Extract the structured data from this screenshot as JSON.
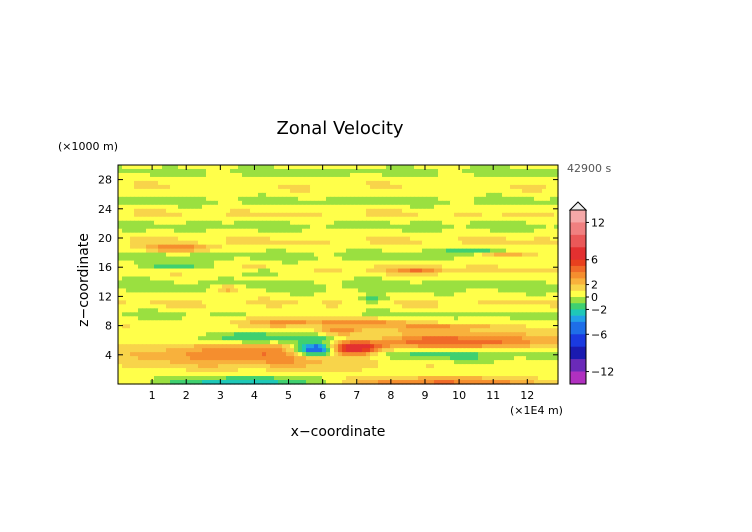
{
  "chart_data": {
    "type": "heatmap",
    "title": "Zonal Velocity",
    "xlabel": "x−coordinate",
    "ylabel": "z−coordinate",
    "x_unit": "(×1E4 m)",
    "y_unit": "(×1000 m)",
    "time_label": "42900 s",
    "xlim": [
      0,
      12.9
    ],
    "ylim": [
      0,
      30
    ],
    "x_ticks": [
      "1",
      "2",
      "3",
      "4",
      "5",
      "6",
      "7",
      "8",
      "9",
      "10",
      "11",
      "12"
    ],
    "y_ticks": [
      "4",
      "8",
      "12",
      "16",
      "20",
      "24",
      "28"
    ],
    "colorbar": {
      "tick_labels": [
        "12",
        "6",
        "2",
        "0",
        "−2",
        "−6",
        "−12"
      ],
      "levels": [
        {
          "value": 14,
          "color": "#f5a8a8"
        },
        {
          "value": 12,
          "color": "#f08080"
        },
        {
          "value": 10,
          "color": "#ea5858"
        },
        {
          "value": 8,
          "color": "#e33030"
        },
        {
          "value": 6,
          "color": "#e8401e"
        },
        {
          "value": 5,
          "color": "#f06a28"
        },
        {
          "value": 4,
          "color": "#f58e2e"
        },
        {
          "value": 3,
          "color": "#f8b13c"
        },
        {
          "value": 2,
          "color": "#f8d44a"
        },
        {
          "value": 1,
          "color": "#ffff4a"
        },
        {
          "value": 0,
          "color": "#9ae040"
        },
        {
          "value": -1,
          "color": "#3fd070"
        },
        {
          "value": -2,
          "color": "#1ec8b8"
        },
        {
          "value": -3,
          "color": "#22a0e8"
        },
        {
          "value": -4,
          "color": "#1e6ee8"
        },
        {
          "value": -6,
          "color": "#1a3ae0"
        },
        {
          "value": -8,
          "color": "#1a1ab0"
        },
        {
          "value": -10,
          "color": "#6a2ab8"
        },
        {
          "value": -12,
          "color": "#b030c0"
        },
        {
          "value": -14,
          "color": "#f030b0"
        }
      ]
    },
    "features": [
      {
        "x": 4.4,
        "z": 4.0,
        "wx": 4.0,
        "wz": 1.6,
        "u": 4.0
      },
      {
        "x": 9.7,
        "z": 5.8,
        "wx": 3.6,
        "wz": 1.1,
        "u": 4.5
      },
      {
        "x": 5.0,
        "z": 6.3,
        "wx": 2.6,
        "wz": 0.8,
        "u": -3.5
      },
      {
        "x": 8.5,
        "z": 4.1,
        "wx": 3.2,
        "wz": 1.0,
        "u": -3.0
      },
      {
        "x": 5.8,
        "z": 4.8,
        "wx": 0.6,
        "wz": 0.9,
        "u": -8.0
      },
      {
        "x": 6.9,
        "z": 4.8,
        "wx": 0.7,
        "wz": 0.9,
        "u": 5.5
      },
      {
        "x": 9.5,
        "z": 0.4,
        "wx": 3.0,
        "wz": 0.5,
        "u": 4.0
      },
      {
        "x": 3.8,
        "z": 0.4,
        "wx": 2.2,
        "wz": 0.5,
        "u": -3.5
      },
      {
        "x": 5.2,
        "z": 8.6,
        "wx": 1.6,
        "wz": 0.7,
        "u": 3.0
      },
      {
        "x": 6.5,
        "z": 7.2,
        "wx": 0.6,
        "wz": 0.6,
        "u": 3.0
      },
      {
        "x": 7.5,
        "z": 8.4,
        "wx": 1.2,
        "wz": 0.6,
        "u": 2.5
      },
      {
        "x": 9.5,
        "z": 7.8,
        "wx": 1.4,
        "wz": 0.5,
        "u": 2.5
      },
      {
        "x": 1.7,
        "z": 18.6,
        "wx": 1.1,
        "wz": 0.5,
        "u": 3.5
      },
      {
        "x": 11.3,
        "z": 17.7,
        "wx": 1.0,
        "wz": 0.5,
        "u": 3.5
      },
      {
        "x": 8.8,
        "z": 15.6,
        "wx": 0.8,
        "wz": 0.5,
        "u": 3.0
      },
      {
        "x": 1.6,
        "z": 16.1,
        "wx": 1.0,
        "wz": 0.5,
        "u": -2.5
      },
      {
        "x": 10.4,
        "z": 18.1,
        "wx": 1.0,
        "wz": 0.5,
        "u": -2.5
      },
      {
        "x": 4.2,
        "z": 15.3,
        "wx": 0.8,
        "wz": 0.4,
        "u": -2.0
      },
      {
        "x": 7.5,
        "z": 11.6,
        "wx": 0.5,
        "wz": 0.5,
        "u": -2.0
      },
      {
        "x": 3.2,
        "z": 13.0,
        "wx": 0.4,
        "wz": 0.5,
        "u": 2.5
      }
    ],
    "bands": [
      {
        "z": 2.4,
        "wz": 0.8,
        "u": 0.8
      },
      {
        "z": 7.5,
        "wz": 0.9,
        "u": 1.2
      },
      {
        "z": 9.6,
        "wz": 0.8,
        "u": 0.0
      },
      {
        "z": 11.0,
        "wz": 1.0,
        "u": 1.4
      },
      {
        "z": 13.4,
        "wz": 1.2,
        "u": 0.0
      },
      {
        "z": 15.6,
        "wz": 0.9,
        "u": 1.4
      },
      {
        "z": 17.5,
        "wz": 0.9,
        "u": 0.0
      },
      {
        "z": 19.6,
        "wz": 0.9,
        "u": 1.4
      },
      {
        "z": 21.7,
        "wz": 0.9,
        "u": 0.0
      },
      {
        "z": 23.3,
        "wz": 0.9,
        "u": 1.4
      },
      {
        "z": 25.0,
        "wz": 0.9,
        "u": 0.0
      },
      {
        "z": 27.0,
        "wz": 1.1,
        "u": 1.2
      },
      {
        "z": 29.0,
        "wz": 0.7,
        "u": 0.0
      }
    ]
  }
}
